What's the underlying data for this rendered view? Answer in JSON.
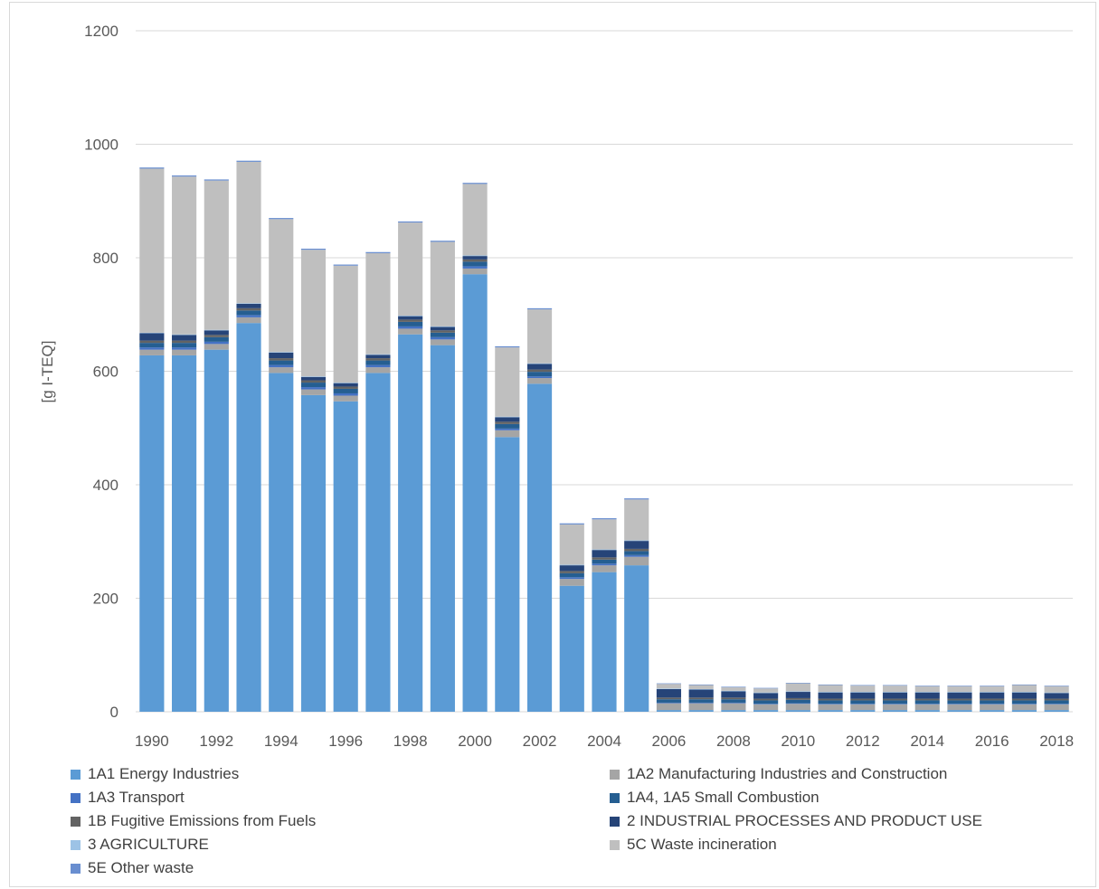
{
  "chart_data": {
    "type": "bar",
    "stacked": true,
    "title": "",
    "xlabel": "",
    "ylabel": "[g I-TEQ]",
    "ylim": [
      0,
      1200
    ],
    "yticks": [
      0,
      200,
      400,
      600,
      800,
      1000,
      1200
    ],
    "grid": true,
    "legend_position": "bottom",
    "categories": [
      "1990",
      "1991",
      "1992",
      "1993",
      "1994",
      "1995",
      "1996",
      "1997",
      "1998",
      "1999",
      "2000",
      "2001",
      "2002",
      "2003",
      "2004",
      "2005",
      "2006",
      "2007",
      "2008",
      "2009",
      "2010",
      "2011",
      "2012",
      "2013",
      "2014",
      "2015",
      "2016",
      "2017",
      "2018"
    ],
    "xtick_labels": [
      "1990",
      "",
      "1992",
      "",
      "1994",
      "",
      "1996",
      "",
      "1998",
      "",
      "2000",
      "",
      "2002",
      "",
      "2004",
      "",
      "2006",
      "",
      "2008",
      "",
      "2010",
      "",
      "2012",
      "",
      "2014",
      "",
      "2016",
      "",
      "2018"
    ],
    "series": [
      {
        "name": "1A1 Energy Industries",
        "color": "#5b9bd5",
        "values": [
          628,
          628,
          638,
          685,
          597,
          558,
          547,
          597,
          665,
          646,
          771,
          484,
          578,
          222,
          246,
          258,
          3,
          3,
          3,
          3,
          3,
          3,
          3,
          3,
          3,
          3,
          3,
          3,
          3
        ]
      },
      {
        "name": "1A2 Manufacturing Industries and Construction",
        "color": "#a5a5a5",
        "values": [
          10,
          10,
          10,
          10,
          10,
          10,
          10,
          10,
          10,
          10,
          10,
          12,
          10,
          12,
          12,
          15,
          12,
          12,
          12,
          10,
          11,
          10,
          10,
          10,
          10,
          10,
          10,
          10,
          10
        ]
      },
      {
        "name": "1A3 Transport",
        "color": "#4472c4",
        "values": [
          4,
          4,
          4,
          4,
          4,
          4,
          4,
          4,
          4,
          4,
          4,
          3,
          3,
          3,
          3,
          3,
          1,
          1,
          1,
          1,
          1,
          1,
          1,
          1,
          1,
          1,
          1,
          1,
          1
        ]
      },
      {
        "name": "1A4, 1A5 Small Combustion",
        "color": "#255e91",
        "values": [
          8,
          8,
          8,
          8,
          8,
          8,
          8,
          8,
          8,
          8,
          8,
          8,
          8,
          7,
          7,
          7,
          6,
          6,
          6,
          6,
          6,
          6,
          6,
          6,
          6,
          6,
          6,
          6,
          6
        ]
      },
      {
        "name": "1B Fugitive Emissions from Fuels",
        "color": "#636363",
        "values": [
          4,
          4,
          4,
          4,
          4,
          4,
          4,
          4,
          4,
          4,
          4,
          4,
          4,
          4,
          4,
          4,
          3,
          3,
          3,
          3,
          3,
          3,
          3,
          3,
          3,
          3,
          3,
          3,
          3
        ]
      },
      {
        "name": "2 INDUSTRIAL PROCESSES AND PRODUCT USE",
        "color": "#264478",
        "values": [
          13,
          10,
          8,
          8,
          10,
          6,
          6,
          6,
          6,
          6,
          6,
          8,
          10,
          10,
          13,
          14,
          15,
          14,
          11,
          10,
          11,
          11,
          11,
          11,
          11,
          11,
          11,
          11,
          10
        ]
      },
      {
        "name": "3 AGRICULTURE",
        "color": "#9dc3e6",
        "values": [
          1,
          1,
          1,
          1,
          1,
          1,
          1,
          1,
          1,
          1,
          1,
          1,
          1,
          1,
          1,
          1,
          1,
          1,
          1,
          1,
          1,
          1,
          1,
          1,
          1,
          1,
          1,
          1,
          1
        ]
      },
      {
        "name": "5C Waste incineration",
        "color": "#bfbfbf",
        "values": [
          289,
          278,
          263,
          249,
          234,
          223,
          206,
          178,
          164,
          149,
          126,
          122,
          95,
          71,
          53,
          72,
          8,
          7,
          6,
          7,
          14,
          12,
          11,
          11,
          10,
          10,
          10,
          12,
          11
        ]
      },
      {
        "name": "5E Other waste",
        "color": "#698ed0",
        "values": [
          2,
          2,
          2,
          2,
          2,
          2,
          2,
          2,
          2,
          2,
          2,
          2,
          2,
          2,
          2,
          2,
          1,
          1,
          1,
          1,
          1,
          1,
          1,
          1,
          1,
          1,
          1,
          1,
          1
        ]
      }
    ]
  }
}
